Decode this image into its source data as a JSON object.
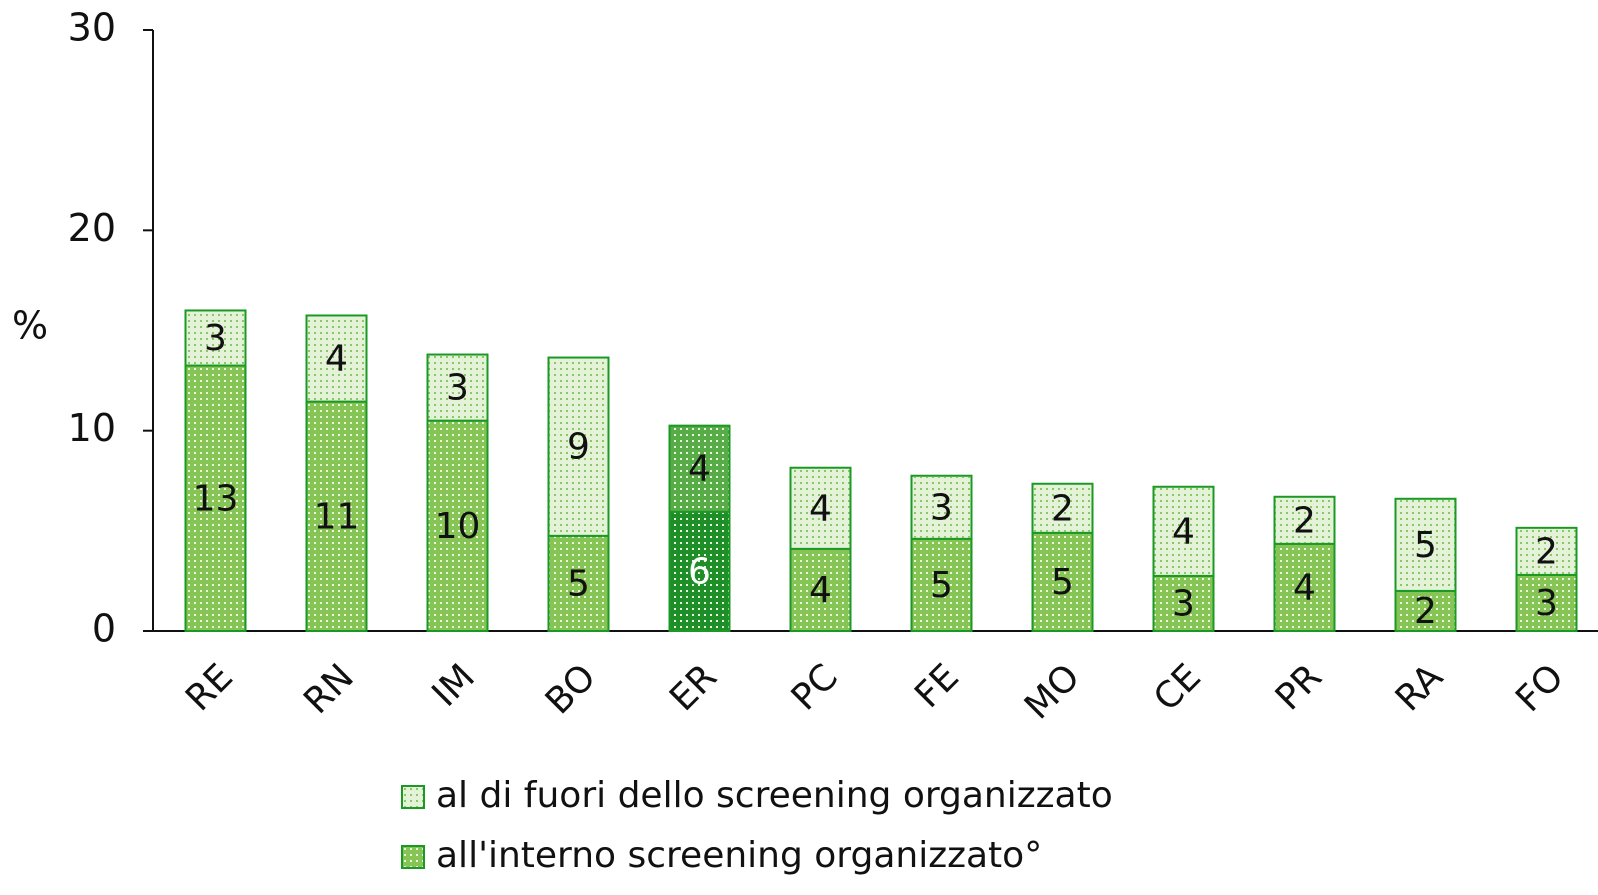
{
  "chart_data": {
    "type": "stacked_bar",
    "y_label": "%",
    "categories": [
      "RE",
      "RN",
      "IM",
      "BO",
      "ER",
      "PC",
      "FE",
      "MO",
      "CE",
      "PR",
      "RA",
      "FO"
    ],
    "highlight": "ER",
    "series": [
      {
        "name": "all'interno screening organizzato°",
        "color": "#86c456",
        "highlight_color": "#1e8f28",
        "values": [
          13.25,
          11.45,
          10.5,
          4.75,
          5.95,
          4.1,
          4.6,
          4.9,
          2.75,
          4.35,
          2.0,
          2.8
        ],
        "value_labels": [
          "13",
          "11",
          "10",
          "5",
          "6",
          "4",
          "5",
          "5",
          "3",
          "4",
          "2",
          "3"
        ]
      },
      {
        "name": "al di fuori dello screening organizzato",
        "color": "#e4f2d8",
        "highlight_color": "#58ac48",
        "values": [
          2.75,
          4.3,
          3.3,
          8.9,
          4.3,
          4.05,
          3.15,
          2.45,
          4.45,
          2.35,
          4.6,
          2.35
        ],
        "value_labels": [
          "3",
          "4",
          "3",
          "9",
          "4",
          "4",
          "3",
          "2",
          "4",
          "2",
          "5",
          "2"
        ]
      }
    ],
    "ylim": [
      0,
      30
    ],
    "yticks": [
      0,
      10,
      20,
      30
    ]
  }
}
